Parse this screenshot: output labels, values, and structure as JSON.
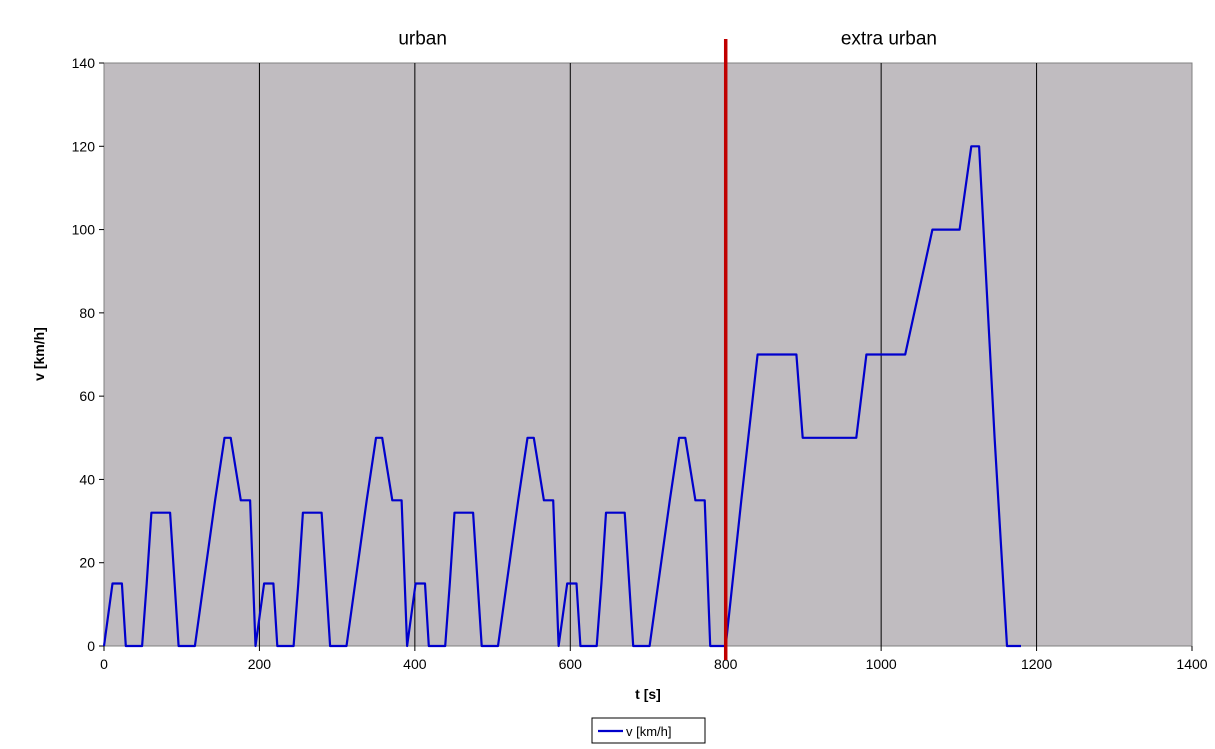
{
  "chart_data": {
    "type": "line",
    "xlabel": "t [s]",
    "ylabel": "v [km/h]",
    "xlim": [
      0,
      1400
    ],
    "ylim": [
      0,
      140
    ],
    "x_ticks": [
      0,
      200,
      400,
      600,
      800,
      1000,
      1200,
      1400
    ],
    "y_ticks": [
      0,
      20,
      40,
      60,
      80,
      100,
      120,
      140
    ],
    "grid": "vertical",
    "plot_background": "#c0bcc0",
    "legend_position": "bottom-center",
    "annotations": [
      {
        "text": "urban",
        "x": 410,
        "y": 144
      },
      {
        "text": "extra urban",
        "x": 1010,
        "y": 144
      }
    ],
    "marker_line": {
      "x": 800,
      "color": "#c00000"
    },
    "series": [
      {
        "name": "v [km/h]",
        "color": "#0000cc",
        "x": [
          0,
          11,
          15,
          23,
          28,
          49,
          55,
          61,
          85,
          96,
          117,
          143,
          155,
          163,
          176,
          188,
          195,
          195,
          206,
          210,
          218,
          223,
          244,
          250,
          256,
          280,
          291,
          312,
          338,
          350,
          358,
          371,
          383,
          390,
          390,
          401,
          405,
          413,
          418,
          439,
          445,
          451,
          475,
          486,
          507,
          533,
          545,
          553,
          566,
          578,
          585,
          585,
          596,
          600,
          608,
          613,
          634,
          640,
          646,
          670,
          681,
          702,
          728,
          740,
          748,
          761,
          773,
          780,
          800,
          820,
          841,
          891,
          899,
          968,
          981,
          1031,
          1066,
          1101,
          1116,
          1126,
          1146,
          1162,
          1180
        ],
        "values": [
          0,
          15,
          15,
          15,
          0,
          0,
          15,
          32,
          32,
          0,
          0,
          35,
          50,
          50,
          35,
          35,
          0,
          0,
          15,
          15,
          15,
          0,
          0,
          15,
          32,
          32,
          0,
          0,
          35,
          50,
          50,
          35,
          35,
          0,
          0,
          15,
          15,
          15,
          0,
          0,
          15,
          32,
          32,
          0,
          0,
          35,
          50,
          50,
          35,
          35,
          0,
          0,
          15,
          15,
          15,
          0,
          0,
          15,
          32,
          32,
          0,
          0,
          35,
          50,
          50,
          35,
          35,
          0,
          0,
          35,
          70,
          70,
          50,
          50,
          70,
          70,
          100,
          100,
          120,
          120,
          50,
          0,
          0
        ]
      }
    ]
  }
}
